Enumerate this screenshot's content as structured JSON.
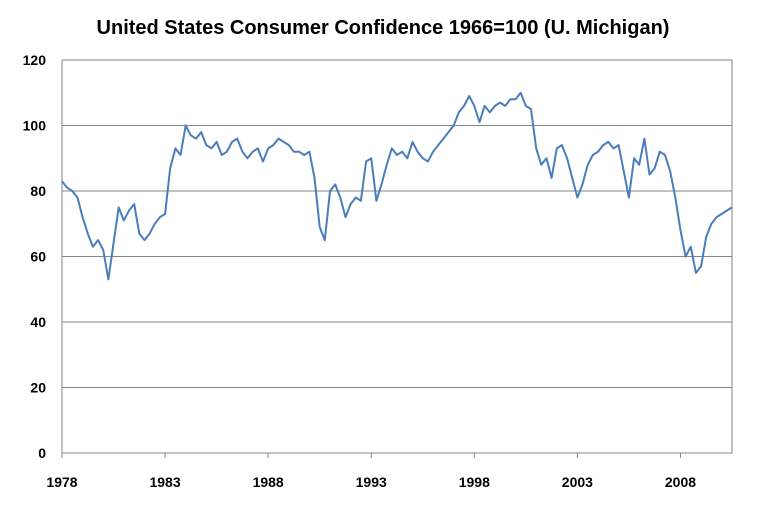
{
  "chart_data": {
    "type": "line",
    "title": "United States Consumer Confidence 1966=100 (U. Michigan)",
    "xlabel": "",
    "ylabel": "",
    "xlim": [
      1978,
      2010.5
    ],
    "ylim": [
      0,
      120
    ],
    "x_ticks": [
      "1978",
      "1983",
      "1988",
      "1993",
      "1998",
      "2003",
      "2008"
    ],
    "y_ticks": [
      "0",
      "20",
      "40",
      "60",
      "80",
      "100",
      "120"
    ],
    "grid": "horizontal",
    "legend": "none",
    "line_color": "#4A7EBB",
    "series": [
      {
        "x": [
          1978.0,
          1978.25,
          1978.5,
          1978.75,
          1979.0,
          1979.25,
          1979.5,
          1979.75,
          1980.0,
          1980.25,
          1980.5,
          1980.75,
          1981.0,
          1981.25,
          1981.5,
          1981.75,
          1982.0,
          1982.25,
          1982.5,
          1982.75,
          1983.0,
          1983.25,
          1983.5,
          1983.75,
          1984.0,
          1984.25,
          1984.5,
          1984.75,
          1985.0,
          1985.25,
          1985.5,
          1985.75,
          1986.0,
          1986.25,
          1986.5,
          1986.75,
          1987.0,
          1987.25,
          1987.5,
          1987.75,
          1988.0,
          1988.25,
          1988.5,
          1988.75,
          1989.0,
          1989.25,
          1989.5,
          1989.75,
          1990.0,
          1990.25,
          1990.5,
          1990.75,
          1991.0,
          1991.25,
          1991.5,
          1991.75,
          1992.0,
          1992.25,
          1992.5,
          1992.75,
          1993.0,
          1993.25,
          1993.5,
          1993.75,
          1994.0,
          1994.25,
          1994.5,
          1994.75,
          1995.0,
          1995.25,
          1995.5,
          1995.75,
          1996.0,
          1996.25,
          1996.5,
          1996.75,
          1997.0,
          1997.25,
          1997.5,
          1997.75,
          1998.0,
          1998.25,
          1998.5,
          1998.75,
          1999.0,
          1999.25,
          1999.5,
          1999.75,
          2000.0,
          2000.25,
          2000.5,
          2000.75,
          2001.0,
          2001.25,
          2001.5,
          2001.75,
          2002.0,
          2002.25,
          2002.5,
          2002.75,
          2003.0,
          2003.25,
          2003.5,
          2003.75,
          2004.0,
          2004.25,
          2004.5,
          2004.75,
          2005.0,
          2005.25,
          2005.5,
          2005.75,
          2006.0,
          2006.25,
          2006.5,
          2006.75,
          2007.0,
          2007.25,
          2007.5,
          2007.75,
          2008.0,
          2008.25,
          2008.5,
          2008.75,
          2009.0,
          2009.25,
          2009.5,
          2009.75,
          2010.0,
          2010.25,
          2010.5
        ],
        "values": [
          83,
          81,
          80,
          78,
          72,
          67,
          63,
          65,
          62,
          53,
          64,
          75,
          71,
          74,
          76,
          67,
          65,
          67,
          70,
          72,
          73,
          87,
          93,
          91,
          100,
          97,
          96,
          98,
          94,
          93,
          95,
          91,
          92,
          95,
          96,
          92,
          90,
          92,
          93,
          89,
          93,
          94,
          96,
          95,
          94,
          92,
          92,
          91,
          92,
          84,
          69,
          65,
          80,
          82,
          78,
          72,
          76,
          78,
          77,
          89,
          90,
          77,
          82,
          88,
          93,
          91,
          92,
          90,
          95,
          92,
          90,
          89,
          92,
          94,
          96,
          98,
          100,
          104,
          106,
          109,
          106,
          101,
          106,
          104,
          106,
          107,
          106,
          108,
          108,
          110,
          106,
          105,
          93,
          88,
          90,
          84,
          93,
          94,
          90,
          84,
          78,
          82,
          88,
          91,
          92,
          94,
          95,
          93,
          94,
          86,
          78,
          90,
          88,
          96,
          85,
          87,
          92,
          91,
          86,
          78,
          68,
          60,
          63,
          55,
          57,
          66,
          70,
          72,
          73,
          74,
          75
        ]
      }
    ]
  }
}
